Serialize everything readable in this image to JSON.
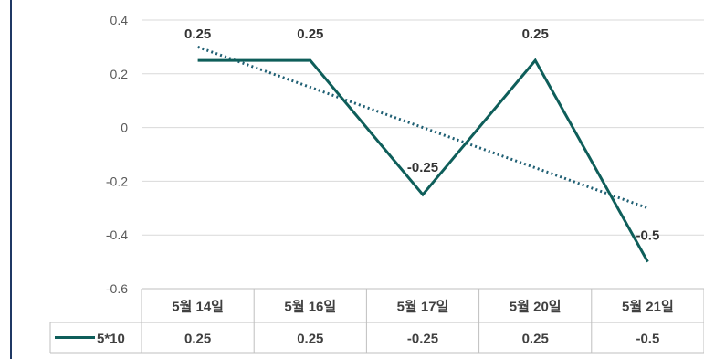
{
  "chart_data": {
    "type": "line",
    "title": "",
    "categories": [
      "5월 14일",
      "5월 16일",
      "5월 17일",
      "5월 20일",
      "5월 21일"
    ],
    "series": [
      {
        "name": "5*10",
        "values": [
          0.25,
          0.25,
          -0.25,
          0.25,
          -0.5
        ],
        "color": "#0e5e5a"
      }
    ],
    "data_labels": [
      "0.25",
      "0.25",
      "-0.25",
      "0.25",
      "-0.5"
    ],
    "trendline": {
      "type": "linear",
      "style": "dotted",
      "color": "#1f5f73",
      "start": 0.3,
      "end": -0.3
    },
    "y_ticks": [
      "0.4",
      "0.2",
      "0",
      "-0.2",
      "-0.4",
      "-0.6"
    ],
    "y_tick_values": [
      0.4,
      0.2,
      0,
      -0.2,
      -0.4,
      -0.6
    ],
    "ylim": [
      -0.6,
      0.4
    ],
    "grid": true,
    "legend": "bottom-left (data table)",
    "data_table": {
      "legend_label": "5*10",
      "values": [
        "0.25",
        "0.25",
        "-0.25",
        "0.25",
        "-0.5"
      ]
    }
  }
}
